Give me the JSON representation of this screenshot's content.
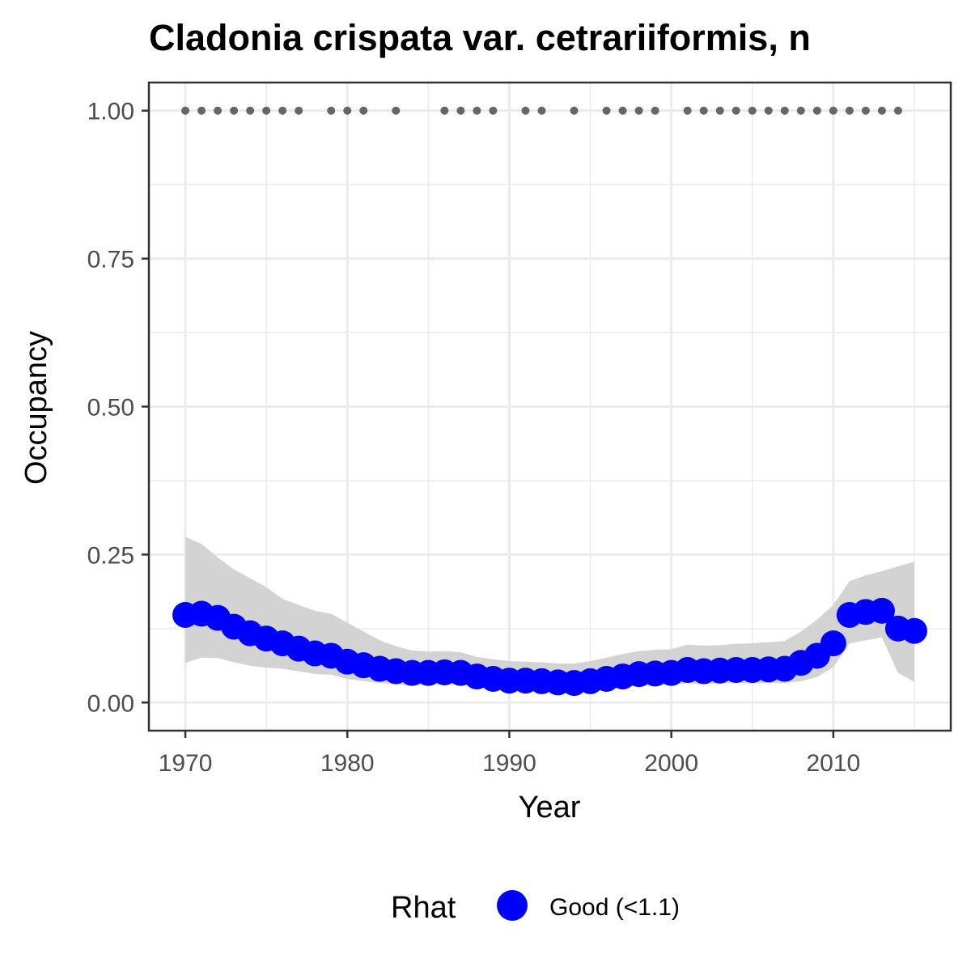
{
  "chart_data": {
    "type": "line",
    "title": "Cladonia crispata var. cetrariiformis, n",
    "xlabel": "Year",
    "ylabel": "Occupancy",
    "xlim": [
      1967.75,
      2017.25
    ],
    "ylim": [
      -0.0475,
      1.0475
    ],
    "x_ticks": [
      "1970",
      "1980",
      "1990",
      "2000",
      "2010"
    ],
    "y_ticks": [
      "0.00",
      "0.25",
      "0.50",
      "0.75",
      "1.00"
    ],
    "grid": true,
    "legend": {
      "position": "bottom",
      "title": "Rhat",
      "entries": [
        {
          "label": "Good (<1.1)",
          "color": "#0000ff"
        }
      ]
    },
    "colors": {
      "points": "#0000ff",
      "ribbon": "#d3d3d3",
      "observed": "#666666"
    },
    "series": [
      {
        "name": "Good (<1.1)",
        "x": [
          1970,
          1971,
          1972,
          1973,
          1974,
          1975,
          1976,
          1977,
          1978,
          1979,
          1980,
          1981,
          1982,
          1983,
          1984,
          1985,
          1986,
          1987,
          1988,
          1989,
          1990,
          1991,
          1992,
          1993,
          1994,
          1995,
          1996,
          1997,
          1998,
          1999,
          2000,
          2001,
          2002,
          2003,
          2004,
          2005,
          2006,
          2007,
          2008,
          2009,
          2010,
          2011,
          2012,
          2013,
          2014,
          2015
        ],
        "y": [
          0.148,
          0.15,
          0.143,
          0.128,
          0.117,
          0.108,
          0.1,
          0.091,
          0.083,
          0.079,
          0.069,
          0.063,
          0.057,
          0.053,
          0.05,
          0.05,
          0.051,
          0.05,
          0.044,
          0.04,
          0.037,
          0.037,
          0.036,
          0.034,
          0.033,
          0.036,
          0.04,
          0.044,
          0.048,
          0.049,
          0.05,
          0.055,
          0.053,
          0.054,
          0.055,
          0.055,
          0.056,
          0.057,
          0.067,
          0.079,
          0.1,
          0.148,
          0.153,
          0.155,
          0.125,
          0.121
        ],
        "lower": [
          0.067,
          0.076,
          0.075,
          0.068,
          0.062,
          0.059,
          0.057,
          0.053,
          0.048,
          0.047,
          0.04,
          0.036,
          0.033,
          0.031,
          0.029,
          0.03,
          0.031,
          0.03,
          0.027,
          0.024,
          0.022,
          0.022,
          0.021,
          0.02,
          0.02,
          0.021,
          0.024,
          0.026,
          0.028,
          0.029,
          0.03,
          0.033,
          0.031,
          0.032,
          0.033,
          0.032,
          0.033,
          0.033,
          0.036,
          0.043,
          0.06,
          0.1,
          0.105,
          0.11,
          0.05,
          0.035
        ],
        "upper": [
          0.28,
          0.268,
          0.245,
          0.225,
          0.21,
          0.195,
          0.175,
          0.165,
          0.155,
          0.15,
          0.135,
          0.12,
          0.105,
          0.095,
          0.088,
          0.086,
          0.087,
          0.085,
          0.077,
          0.073,
          0.07,
          0.069,
          0.068,
          0.066,
          0.066,
          0.07,
          0.076,
          0.082,
          0.087,
          0.089,
          0.09,
          0.098,
          0.096,
          0.097,
          0.099,
          0.1,
          0.102,
          0.104,
          0.12,
          0.14,
          0.165,
          0.205,
          0.215,
          0.222,
          0.23,
          0.238
        ]
      }
    ],
    "observed": {
      "x": [
        1970,
        1971,
        1972,
        1973,
        1974,
        1975,
        1976,
        1977,
        1979,
        1980,
        1981,
        1983,
        1986,
        1987,
        1988,
        1989,
        1991,
        1992,
        1994,
        1996,
        1997,
        1998,
        1999,
        2001,
        2002,
        2003,
        2004,
        2005,
        2006,
        2007,
        2008,
        2009,
        2010,
        2011,
        2012,
        2013,
        2014
      ],
      "y": 1.0
    }
  }
}
